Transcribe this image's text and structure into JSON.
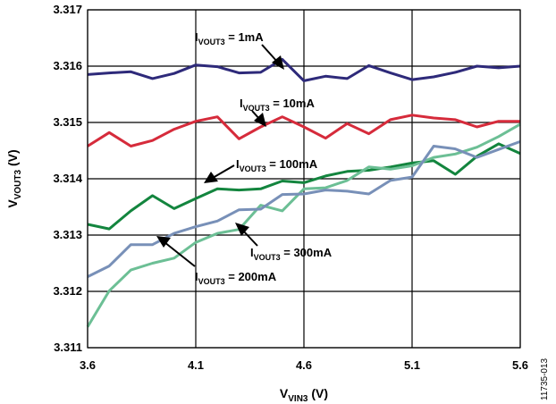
{
  "chart_data": {
    "type": "line",
    "xlabel": {
      "main": "V",
      "sub": "VIN3",
      "unit": " (V)"
    },
    "ylabel": {
      "main": "V",
      "sub": "VOUT3",
      "unit": " (V)"
    },
    "xlim": [
      3.6,
      5.6
    ],
    "ylim": [
      3.311,
      3.317
    ],
    "x_ticks": [
      "3.6",
      "4.1",
      "4.6",
      "5.1",
      "5.6"
    ],
    "y_ticks": [
      "3.311",
      "3.312",
      "3.313",
      "3.314",
      "3.315",
      "3.316",
      "3.317"
    ],
    "grid": true,
    "figure_id": "11735-013",
    "x": [
      3.6,
      3.7,
      3.8,
      3.9,
      4.0,
      4.1,
      4.2,
      4.3,
      4.4,
      4.5,
      4.6,
      4.7,
      4.8,
      4.9,
      5.0,
      5.1,
      5.2,
      5.3,
      5.4,
      5.5,
      5.6
    ],
    "series": [
      {
        "label": {
          "main": "I",
          "sub": "VOUT3",
          "value": " = 1mA"
        },
        "color": "#2e2a7a",
        "values": [
          3.31585,
          3.31588,
          3.3159,
          3.31578,
          3.31587,
          3.31602,
          3.31599,
          3.31588,
          3.31589,
          3.31612,
          3.31574,
          3.31582,
          3.31578,
          3.31601,
          3.31588,
          3.31576,
          3.31581,
          3.31589,
          3.316,
          3.31597,
          3.316
        ]
      },
      {
        "label": {
          "main": "I",
          "sub": "VOUT3",
          "value": " = 10mA"
        },
        "color": "#d62b3b",
        "values": [
          3.31458,
          3.31482,
          3.31458,
          3.31468,
          3.31488,
          3.31502,
          3.3151,
          3.31471,
          3.31492,
          3.3151,
          3.31492,
          3.31472,
          3.31498,
          3.3148,
          3.31505,
          3.31513,
          3.31508,
          3.31505,
          3.31492,
          3.31502,
          3.31502
        ]
      },
      {
        "label": {
          "main": "I",
          "sub": "VOUT3",
          "value": " = 100mA"
        },
        "color": "#13853e",
        "values": [
          3.31319,
          3.31311,
          3.31343,
          3.3137,
          3.31347,
          3.31365,
          3.31382,
          3.3138,
          3.31382,
          3.31396,
          3.31393,
          3.31405,
          3.31413,
          3.31415,
          3.31421,
          3.31428,
          3.31432,
          3.31408,
          3.3144,
          3.31462,
          3.31445
        ]
      },
      {
        "label": {
          "main": "I",
          "sub": "VOUT3",
          "value": " = 200mA"
        },
        "color": "#6cbf95",
        "values": [
          3.31137,
          3.31201,
          3.31238,
          3.3125,
          3.31259,
          3.31287,
          3.31303,
          3.3131,
          3.31353,
          3.31343,
          3.31382,
          3.31384,
          3.31397,
          3.31421,
          3.31417,
          3.31423,
          3.31438,
          3.31444,
          3.31456,
          3.31475,
          3.31497
        ]
      },
      {
        "label": {
          "main": "I",
          "sub": "VOUT3",
          "value": " = 300mA"
        },
        "color": "#7890b8",
        "values": [
          3.31226,
          3.31245,
          3.31283,
          3.31283,
          3.31303,
          3.31315,
          3.31325,
          3.31345,
          3.31346,
          3.31372,
          3.31373,
          3.3138,
          3.31378,
          3.31373,
          3.31397,
          3.31403,
          3.31458,
          3.31453,
          3.31438,
          3.31452,
          3.31466
        ]
      }
    ]
  }
}
